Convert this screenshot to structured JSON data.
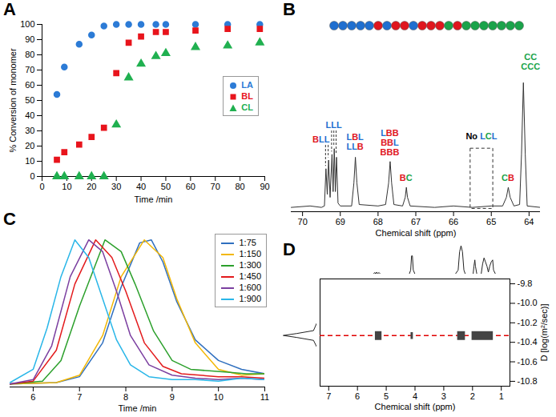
{
  "chart_data": [
    {
      "panel_label": "A",
      "type": "scatter",
      "x_label": "Time /min",
      "y_label": "% Conversion of monomer",
      "xlim": [
        0,
        90
      ],
      "xticks": [
        0,
        10,
        20,
        30,
        40,
        50,
        60,
        70,
        80,
        90
      ],
      "ylim": [
        0,
        100
      ],
      "yticks": [
        0,
        10,
        20,
        30,
        40,
        50,
        60,
        70,
        80,
        90,
        100
      ],
      "grid": false,
      "legend": "right",
      "x": [
        6,
        9,
        15,
        20,
        25,
        30,
        35,
        40,
        46,
        50,
        62,
        75,
        88
      ],
      "series": [
        {
          "name": "LA",
          "color": "#2c7bd6",
          "marker": "circle",
          "values": [
            54,
            72,
            87,
            93,
            99,
            100,
            100,
            100,
            100,
            100,
            100,
            100,
            100
          ]
        },
        {
          "name": "BL",
          "color": "#e8141c",
          "marker": "square",
          "values": [
            11,
            16,
            21,
            26,
            32,
            68,
            88,
            92,
            95,
            95,
            96,
            97,
            97
          ]
        },
        {
          "name": "CL",
          "color": "#20b050",
          "marker": "triangle",
          "values": [
            0,
            0,
            0,
            0,
            0,
            34,
            65,
            74,
            79,
            81,
            85,
            86,
            88
          ]
        }
      ]
    },
    {
      "panel_label": "B",
      "type": "spectrum",
      "x_label": "Chemical shift (ppm)",
      "xlim": [
        70.3,
        63.7
      ],
      "xticks": [
        70,
        69,
        68,
        67,
        66,
        65,
        64
      ],
      "ylim": [
        0,
        115
      ],
      "tick_labels": "x",
      "color": "#333333",
      "x": [
        70.3,
        69.8,
        69.5,
        69.42,
        69.38,
        69.345,
        69.31,
        69.27,
        69.22,
        69.19,
        69.16,
        69.13,
        69.1,
        69.06,
        69.0,
        68.7,
        68.64,
        68.6,
        68.56,
        68.5,
        68.0,
        67.8,
        67.72,
        67.68,
        67.64,
        67.58,
        67.35,
        67.28,
        67.25,
        67.22,
        67.15,
        66.5,
        66.0,
        65.5,
        65.0,
        64.7,
        64.6,
        64.55,
        64.5,
        64.4,
        64.25,
        64.2,
        64.15,
        64.1,
        64.05,
        63.7
      ],
      "values": [
        3,
        4,
        3,
        4,
        30,
        12,
        36,
        10,
        40,
        14,
        44,
        14,
        38,
        6,
        4,
        4,
        20,
        38,
        20,
        5,
        4,
        5,
        20,
        35,
        20,
        5,
        4,
        10,
        17,
        10,
        4,
        3,
        4,
        3,
        4,
        4,
        10,
        17,
        10,
        4,
        5,
        40,
        90,
        40,
        4,
        3
      ],
      "annotations": [
        {
          "lines": [
            "BLL"
          ],
          "x": 69.5,
          "y": 48,
          "targets": [
            69.38,
            69.31
          ]
        },
        {
          "lines": [
            "LLL"
          ],
          "x": 69.16,
          "y": 58,
          "targets": [
            69.22,
            69.16,
            69.1
          ]
        },
        {
          "lines": [
            "LBL",
            "LLB"
          ],
          "x": 68.6,
          "y": 43
        },
        {
          "lines": [
            "LBB",
            "BBL",
            "BBB"
          ],
          "x": 67.68,
          "y": 39
        },
        {
          "lines": [
            "BC"
          ],
          "x": 67.25,
          "y": 21
        },
        {
          "lines": [
            "No LCL"
          ],
          "x": 65.25,
          "y": 50,
          "region": {
            "x": [
              65.55,
              64.95
            ],
            "y": [
              2,
              44
            ]
          }
        },
        {
          "lines": [
            "CB"
          ],
          "x": 64.55,
          "y": 21
        },
        {
          "lines": [
            "CC",
            "CCC"
          ],
          "x": 63.95,
          "y": 99
        }
      ]
    },
    {
      "panel_label": "C",
      "type": "line",
      "x_label": "Time /min",
      "xlim": [
        5.5,
        11
      ],
      "xticks": [
        6,
        7,
        8,
        9,
        10,
        11
      ],
      "ylim": [
        0,
        105
      ],
      "tick_labels": "x",
      "legend": "top-right",
      "series": [
        {
          "name": "1:75",
          "color": "#2f6fbf",
          "x": [
            5.5,
            6.5,
            7.0,
            7.5,
            7.9,
            8.3,
            8.55,
            8.8,
            9.1,
            9.5,
            10,
            10.5,
            11
          ],
          "values": [
            2,
            3,
            7,
            30,
            68,
            98,
            100,
            85,
            58,
            32,
            18,
            12,
            9
          ]
        },
        {
          "name": "1:150",
          "color": "#f2b705",
          "x": [
            5.5,
            6.5,
            7.0,
            7.5,
            7.9,
            8.4,
            8.8,
            9.1,
            9.5,
            10,
            10.5,
            11
          ],
          "values": [
            2,
            3,
            8,
            35,
            75,
            100,
            88,
            60,
            30,
            12,
            8,
            9
          ]
        },
        {
          "name": "1:300",
          "color": "#2ca02c",
          "x": [
            5.5,
            6.2,
            6.6,
            7.0,
            7.55,
            7.9,
            8.2,
            8.6,
            9.0,
            9.4,
            9.8,
            10.2,
            10.6,
            11
          ],
          "values": [
            2,
            4,
            18,
            55,
            100,
            92,
            70,
            38,
            18,
            12,
            11,
            10,
            9,
            9
          ]
        },
        {
          "name": "1:450",
          "color": "#e31a1c",
          "x": [
            5.5,
            6.0,
            6.5,
            6.9,
            7.35,
            7.7,
            8.0,
            8.4,
            8.8,
            9.2,
            9.6,
            10,
            10.5,
            11
          ],
          "values": [
            2,
            4,
            25,
            70,
            100,
            88,
            65,
            30,
            14,
            9,
            8,
            7,
            7,
            6
          ]
        },
        {
          "name": "1:600",
          "color": "#7b3fa0",
          "x": [
            5.5,
            6.0,
            6.4,
            6.8,
            7.2,
            7.5,
            7.8,
            8.1,
            8.5,
            9,
            9.5,
            10,
            10.5,
            11
          ],
          "values": [
            2,
            5,
            28,
            75,
            100,
            92,
            65,
            35,
            15,
            8,
            6,
            5,
            6,
            5
          ]
        },
        {
          "name": "1:900",
          "color": "#29b6e8",
          "x": [
            5.5,
            6.0,
            6.3,
            6.6,
            6.9,
            7.2,
            7.5,
            7.8,
            8.1,
            8.5,
            9.0,
            9.5,
            10,
            10.5,
            11
          ],
          "values": [
            3,
            12,
            40,
            75,
            100,
            88,
            60,
            32,
            15,
            7,
            5,
            5,
            4,
            6,
            5
          ]
        }
      ]
    },
    {
      "panel_label": "D",
      "type": "dosy",
      "x_label": "Chemical shift (ppm)",
      "y_label": "D [log(m²/sec)]",
      "xlim": [
        7.3,
        0.7
      ],
      "xticks": [
        7,
        6,
        5,
        4,
        3,
        2,
        1
      ],
      "ylim": [
        -10.85,
        -9.75
      ],
      "yticks": [
        -9.8,
        {
          "value": -10,
          "label": "-10.0"
        },
        -10.2,
        -10.4,
        -10.6,
        -10.8
      ],
      "spots": [
        {
          "x": [
            5.38,
            5.15
          ],
          "y": [
            -10.38,
            -10.29
          ]
        },
        {
          "x": [
            4.14,
            4.06
          ],
          "y": [
            -10.37,
            -10.3
          ]
        },
        {
          "x": [
            2.52,
            2.25
          ],
          "y": [
            -10.38,
            -10.29
          ]
        },
        {
          "x": [
            2.02,
            1.28
          ],
          "y": [
            -10.38,
            -10.29
          ]
        }
      ],
      "reference_y": -10.33,
      "projection": {
        "ylim": [
          0,
          75
        ],
        "x": [
          7.3,
          5.45,
          5.4,
          5.37,
          5.33,
          5.3,
          5.25,
          5.2,
          4.2,
          4.15,
          4.12,
          4.09,
          4.06,
          4.0,
          2.6,
          2.5,
          2.45,
          2.4,
          2.35,
          2.3,
          2.25,
          1.98,
          1.95,
          1.92,
          1.9,
          1.85,
          1.7,
          1.65,
          1.6,
          1.55,
          1.5,
          1.45,
          1.4,
          1.35,
          1.3,
          1.27,
          1.2,
          0.7
        ],
        "values": [
          0,
          0,
          4,
          1,
          5,
          1,
          4,
          0,
          0,
          10,
          45,
          45,
          10,
          0,
          0,
          10,
          55,
          70,
          55,
          10,
          0,
          0,
          20,
          35,
          20,
          0,
          0,
          25,
          40,
          30,
          20,
          5,
          20,
          30,
          35,
          10,
          0,
          0
        ]
      },
      "side_projection": {
        "xlim": [
          100,
          0
        ],
        "y": [
          -9.75,
          -10.2,
          -10.28,
          -10.31,
          -10.33,
          -10.35,
          -10.38,
          -10.45,
          -10.85
        ],
        "values": [
          0,
          0,
          10,
          60,
          100,
          60,
          10,
          0,
          0
        ]
      }
    }
  ]
}
